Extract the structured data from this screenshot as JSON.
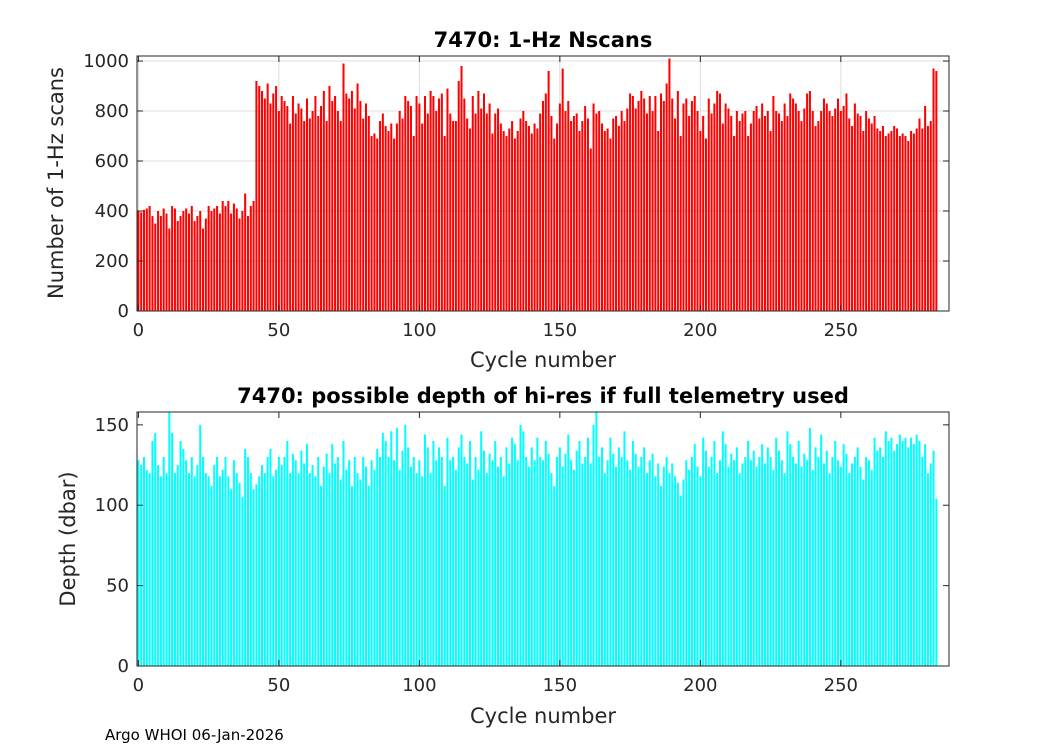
{
  "footer": {
    "text": "Argo WHOI 06-Jan-2026"
  },
  "chart_data": [
    {
      "type": "bar",
      "title": "7470: 1-Hz Nscans",
      "xlabel": "Cycle number",
      "ylabel": "Number of 1-Hz scans",
      "xlim": [
        -0.5,
        288.5
      ],
      "ylim": [
        0,
        1020
      ],
      "xticks": [
        0,
        50,
        100,
        150,
        200,
        250
      ],
      "yticks": [
        0,
        200,
        400,
        600,
        800,
        1000
      ],
      "grid": true,
      "color": "#ff0000",
      "x_start": 0,
      "values": [
        400,
        395,
        405,
        410,
        420,
        380,
        350,
        400,
        380,
        410,
        390,
        330,
        420,
        410,
        360,
        380,
        400,
        410,
        390,
        420,
        360,
        380,
        400,
        330,
        370,
        420,
        400,
        410,
        420,
        390,
        440,
        420,
        440,
        390,
        430,
        410,
        370,
        400,
        470,
        380,
        420,
        440,
        920,
        900,
        880,
        850,
        910,
        830,
        870,
        900,
        800,
        860,
        840,
        820,
        750,
        860,
        790,
        830,
        810,
        760,
        850,
        770,
        800,
        860,
        780,
        820,
        880,
        760,
        900,
        840,
        860,
        800,
        760,
        990,
        870,
        850,
        880,
        810,
        910,
        840,
        770,
        830,
        780,
        700,
        710,
        690,
        760,
        790,
        740,
        720,
        750,
        690,
        750,
        800,
        770,
        860,
        840,
        820,
        700,
        860,
        830,
        750,
        860,
        790,
        880,
        860,
        800,
        850,
        870,
        700,
        890,
        790,
        760,
        760,
        920,
        980,
        850,
        770,
        730,
        860,
        790,
        880,
        810,
        870,
        790,
        830,
        710,
        790,
        810,
        750,
        720,
        700,
        730,
        760,
        690,
        720,
        770,
        800,
        760,
        740,
        710,
        750,
        730,
        790,
        840,
        870,
        960,
        780,
        690,
        750,
        830,
        970,
        800,
        840,
        760,
        780,
        790,
        720,
        760,
        820,
        770,
        650,
        830,
        790,
        800,
        750,
        720,
        730,
        690,
        770,
        780,
        740,
        800,
        760,
        810,
        870,
        860,
        810,
        840,
        880,
        850,
        790,
        860,
        800,
        860,
        720,
        870,
        840,
        910,
        1010,
        850,
        770,
        880,
        700,
        830,
        850,
        780,
        840,
        860,
        800,
        720,
        780,
        690,
        850,
        790,
        830,
        880,
        870,
        750,
        830,
        810,
        780,
        700,
        800,
        760,
        790,
        800,
        700,
        750,
        800,
        820,
        770,
        830,
        780,
        800,
        720,
        860,
        800,
        790,
        760,
        830,
        780,
        870,
        850,
        830,
        800,
        760,
        810,
        870,
        880,
        800,
        740,
        760,
        800,
        850,
        830,
        800,
        780,
        810,
        850,
        800,
        820,
        870,
        770,
        740,
        830,
        790,
        780,
        720,
        800,
        770,
        750,
        780,
        730,
        720,
        740,
        700,
        710,
        720,
        740,
        730,
        700,
        710,
        700,
        680,
        720,
        710,
        730,
        770,
        730,
        820,
        740,
        760,
        970,
        960
      ]
    },
    {
      "type": "bar",
      "title": "7470: possible depth of hi-res if full telemetry used",
      "xlabel": "Cycle number",
      "ylabel": "Depth (dbar)",
      "xlim": [
        -0.5,
        288.5
      ],
      "ylim": [
        0,
        158
      ],
      "xticks": [
        0,
        50,
        100,
        150,
        200,
        250
      ],
      "yticks": [
        0,
        50,
        100,
        150
      ],
      "grid": false,
      "color": "#00ffff",
      "x_start": 0,
      "values": [
        128,
        125,
        130,
        122,
        120,
        140,
        145,
        125,
        118,
        130,
        120,
        158,
        145,
        120,
        125,
        140,
        135,
        128,
        120,
        130,
        118,
        125,
        150,
        130,
        120,
        118,
        112,
        125,
        130,
        118,
        122,
        130,
        118,
        110,
        128,
        120,
        114,
        105,
        135,
        130,
        120,
        110,
        113,
        118,
        125,
        120,
        130,
        135,
        118,
        122,
        130,
        125,
        130,
        140,
        120,
        132,
        128,
        120,
        134,
        126,
        138,
        120,
        125,
        118,
        130,
        112,
        124,
        132,
        120,
        138,
        126,
        130,
        116,
        140,
        122,
        128,
        112,
        130,
        120,
        116,
        130,
        124,
        112,
        128,
        122,
        135,
        130,
        145,
        140,
        130,
        146,
        128,
        148,
        122,
        134,
        150,
        136,
        124,
        130,
        120,
        128,
        118,
        144,
        136,
        120,
        140,
        128,
        136,
        130,
        112,
        142,
        128,
        130,
        122,
        136,
        144,
        130,
        126,
        140,
        116,
        130,
        122,
        146,
        134,
        120,
        132,
        128,
        140,
        124,
        130,
        118,
        136,
        126,
        142,
        138,
        128,
        150,
        146,
        130,
        124,
        136,
        128,
        142,
        130,
        128,
        140,
        132,
        120,
        112,
        130,
        136,
        124,
        132,
        144,
        128,
        122,
        134,
        140,
        126,
        130,
        142,
        126,
        150,
        158,
        130,
        136,
        120,
        128,
        142,
        132,
        124,
        136,
        130,
        146,
        128,
        122,
        140,
        132,
        124,
        130,
        136,
        120,
        128,
        132,
        118,
        126,
        112,
        124,
        130,
        120,
        126,
        118,
        114,
        106,
        116,
        128,
        122,
        130,
        138,
        124,
        118,
        142,
        134,
        124,
        130,
        140,
        120,
        128,
        146,
        138,
        124,
        132,
        128,
        136,
        120,
        126,
        130,
        140,
        128,
        134,
        124,
        130,
        138,
        126,
        136,
        130,
        122,
        142,
        134,
        128,
        120,
        146,
        138,
        130,
        126,
        140,
        124,
        132,
        128,
        148,
        122,
        136,
        130,
        144,
        126,
        134,
        120,
        130,
        140,
        128,
        124,
        138,
        132,
        120,
        126,
        130,
        136,
        124,
        116,
        130,
        128,
        122,
        142,
        134,
        136,
        130,
        146,
        140,
        142,
        134,
        138,
        144,
        140,
        142,
        136,
        142,
        138,
        144,
        140,
        130,
        138,
        120,
        126,
        134,
        104
      ]
    }
  ]
}
